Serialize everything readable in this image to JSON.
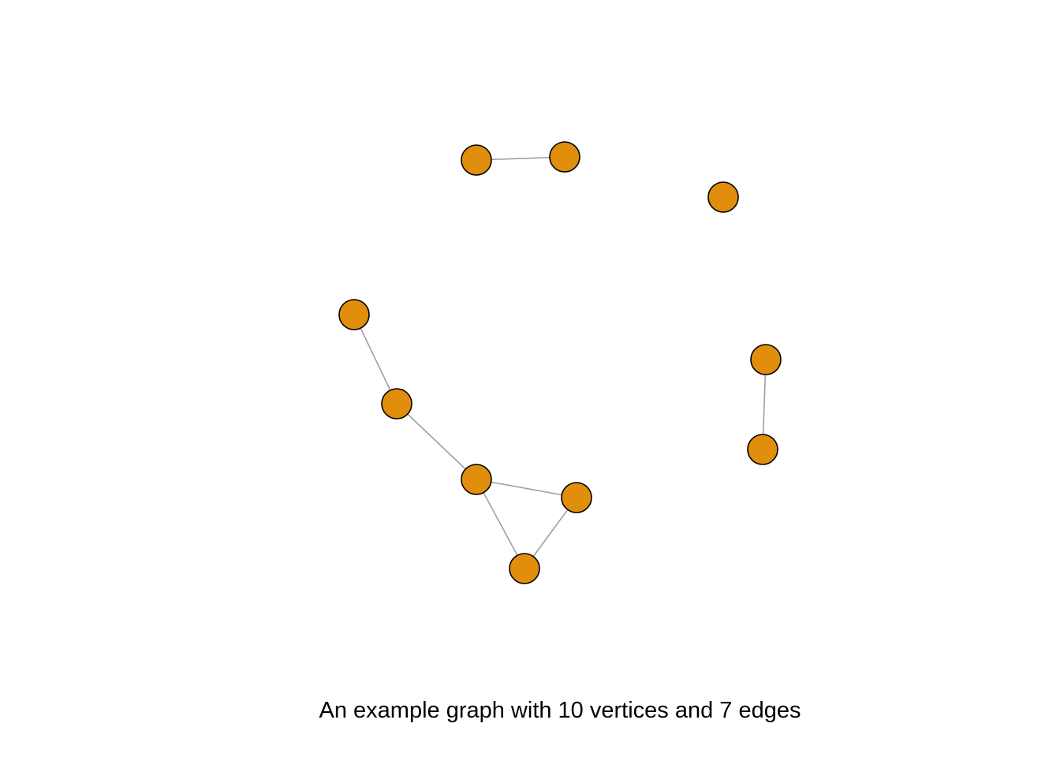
{
  "caption": "An example graph with 10 vertices and 7 edges",
  "colors": {
    "vertex_fill": "#E08E0B",
    "vertex_border": "#000000",
    "edge": "#A0A0A0"
  },
  "graph": {
    "vertex_count": 10,
    "edge_count": 7,
    "edges": [
      [
        0,
        1
      ],
      [
        3,
        4
      ],
      [
        4,
        5
      ],
      [
        5,
        6
      ],
      [
        5,
        7
      ],
      [
        6,
        7
      ],
      [
        8,
        9
      ]
    ]
  }
}
